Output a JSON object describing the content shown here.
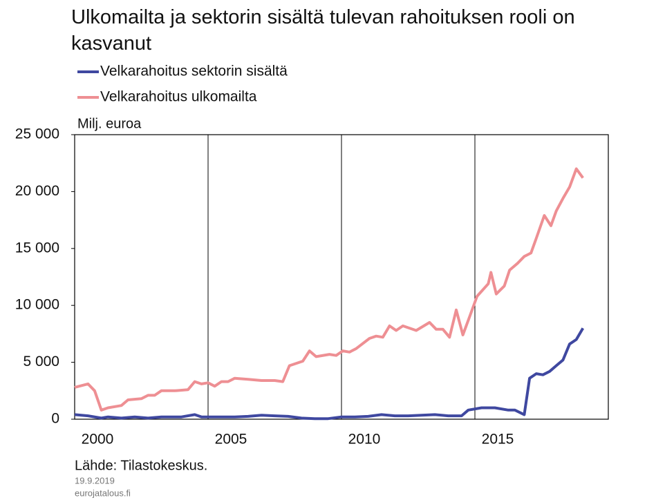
{
  "chart_data": {
    "type": "line",
    "title": "Ulkomailta ja sektorin sisältä tulevan rahoituksen rooli on kasvanut",
    "y_label": "Milj. euroa",
    "source": "Lähde: Tilastokeskus.",
    "date": "19.9.2019",
    "site": "eurojatalous.fi",
    "xlim": [
      2000,
      2020
    ],
    "xticks": [
      2000,
      2005,
      2010,
      2015
    ],
    "ylim": [
      0,
      25000
    ],
    "yticks": [
      0,
      {
        "value": 5000,
        "label": "5 000"
      },
      {
        "value": 10000,
        "label": "10 000"
      },
      {
        "value": 15000,
        "label": "15 000"
      },
      {
        "value": 20000,
        "label": "20 000"
      },
      {
        "value": 25000,
        "label": "25 000"
      }
    ],
    "grid": true,
    "legend": "top-left",
    "series": [
      {
        "name": "Velkarahoitus sektorin sisältä",
        "color": "#3f48a0",
        "x": [
          2000.0,
          2000.5,
          2001.0,
          2001.25,
          2001.75,
          2002.25,
          2002.75,
          2003.25,
          2004.0,
          2004.5,
          2004.75,
          2005.5,
          2006.0,
          2006.5,
          2007.0,
          2007.5,
          2008.0,
          2008.5,
          2009.0,
          2009.5,
          2010.0,
          2010.5,
          2011.0,
          2011.5,
          2012.0,
          2012.5,
          2013.0,
          2013.5,
          2014.0,
          2014.5,
          2014.75,
          2015.25,
          2015.75,
          2016.25,
          2016.5,
          2016.85,
          2017.05,
          2017.3,
          2017.55,
          2017.8,
          2018.05,
          2018.3,
          2018.55,
          2018.8,
          2019.05
        ],
        "values": [
          400,
          300,
          100,
          200,
          100,
          200,
          100,
          200,
          200,
          400,
          200,
          200,
          200,
          250,
          350,
          300,
          250,
          100,
          50,
          50,
          200,
          200,
          250,
          400,
          300,
          300,
          350,
          400,
          300,
          300,
          800,
          1000,
          1000,
          800,
          800,
          400,
          3600,
          4000,
          3900,
          4200,
          4700,
          5200,
          6600,
          7000,
          8000
        ]
      },
      {
        "name": "Velkarahoitus ulkomailta",
        "color": "#ee8f93",
        "x": [
          2000.0,
          2000.5,
          2000.75,
          2001.0,
          2001.25,
          2001.75,
          2002.0,
          2002.5,
          2002.75,
          2003.0,
          2003.25,
          2003.75,
          2004.25,
          2004.5,
          2004.75,
          2005.0,
          2005.25,
          2005.5,
          2005.75,
          2006.0,
          2006.5,
          2007.0,
          2007.5,
          2007.8,
          2008.05,
          2008.55,
          2008.8,
          2009.05,
          2009.55,
          2009.8,
          2010.05,
          2010.3,
          2010.55,
          2011.05,
          2011.3,
          2011.55,
          2011.8,
          2012.05,
          2012.3,
          2012.8,
          2013.3,
          2013.55,
          2013.8,
          2014.05,
          2014.3,
          2014.55,
          2014.8,
          2015.08,
          2015.5,
          2015.6,
          2015.8,
          2016.1,
          2016.3,
          2016.6,
          2016.85,
          2017.1,
          2017.3,
          2017.6,
          2017.85,
          2018.05,
          2018.3,
          2018.55,
          2018.8,
          2019.05
        ],
        "values": [
          2800,
          3100,
          2500,
          800,
          1000,
          1200,
          1700,
          1800,
          2100,
          2100,
          2500,
          2500,
          2600,
          3300,
          3100,
          3200,
          2900,
          3300,
          3300,
          3600,
          3500,
          3400,
          3400,
          3300,
          4700,
          5100,
          6000,
          5500,
          5700,
          5600,
          6000,
          5900,
          6200,
          7100,
          7300,
          7200,
          8200,
          7800,
          8200,
          7800,
          8500,
          7900,
          7900,
          7200,
          9600,
          7400,
          9000,
          10800,
          11900,
          12900,
          11000,
          11700,
          13100,
          13700,
          14300,
          14600,
          15900,
          17900,
          17000,
          18300,
          19400,
          20400,
          22000,
          21200
        ]
      }
    ]
  }
}
